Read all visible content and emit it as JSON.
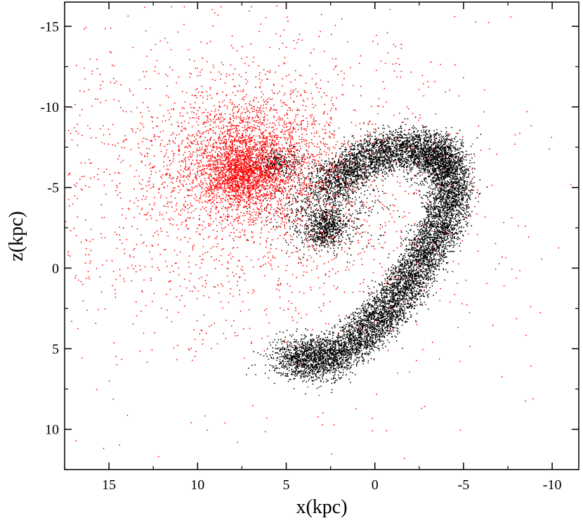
{
  "chart_data": {
    "type": "scatter",
    "title": "",
    "xlabel": "x(kpc)",
    "ylabel": "z(kpc)",
    "xlim": [
      17.5,
      -11.5
    ],
    "ylim": [
      12.5,
      -16.5
    ],
    "x_reversed": true,
    "y_reversed": true,
    "x_ticks": [
      15,
      10,
      5,
      0,
      -5,
      -10
    ],
    "x_tick_labels": [
      "15",
      "10",
      "5",
      "0",
      "-5",
      "-10"
    ],
    "y_ticks": [
      -15,
      -10,
      -5,
      0,
      5,
      10
    ],
    "y_tick_labels": [
      "-15",
      "-10",
      "-5",
      "0",
      "5",
      "10"
    ],
    "grid": false,
    "legend": "none",
    "series": [
      {
        "color": "#ff0000",
        "description_of_distribution": "red point cloud",
        "clusters": [
          {
            "x": 7.0,
            "z": -6.8,
            "sx": 2.2,
            "sz": 2.0,
            "n": 2200
          },
          {
            "x": 7.5,
            "z": -5.8,
            "sx": 1.0,
            "sz": 0.9,
            "n": 1200
          },
          {
            "x": 7.5,
            "z": -5.5,
            "sx": 5.5,
            "sz": 4.5,
            "n": 1800
          },
          {
            "x": 5.0,
            "z": -3.0,
            "sx": 8.5,
            "sz": 7.5,
            "n": 500
          }
        ]
      },
      {
        "color": "#000000",
        "description_of_distribution": "black point cloud",
        "clusters": [
          {
            "x": 2.7,
            "z": -2.5,
            "sx": 0.5,
            "sz": 0.6,
            "n": 500
          },
          {
            "x": 3.0,
            "z": -3.5,
            "sx": 1.4,
            "sz": 1.3,
            "n": 700
          },
          {
            "x": -3.4,
            "z": -6.6,
            "sx": 0.8,
            "sz": 0.8,
            "n": 500
          },
          {
            "x": 3.8,
            "z": 5.8,
            "sx": 1.2,
            "sz": 0.7,
            "n": 500
          },
          {
            "x": 5.5,
            "z": -6.5,
            "sx": 0.8,
            "sz": 0.5,
            "n": 300
          }
        ],
        "curve_band": {
          "points": [
            [
              4.8,
              5.6
            ],
            [
              2.0,
              5.4
            ],
            [
              0.0,
              3.5
            ],
            [
              -1.8,
              1.0
            ],
            [
              -3.3,
              -1.7
            ],
            [
              -4.4,
              -4.5
            ],
            [
              -4.0,
              -7.0
            ],
            [
              -2.0,
              -7.5
            ],
            [
              0.5,
              -6.8
            ],
            [
              2.7,
              -5.0
            ]
          ],
          "spread": 2.0,
          "n": 9000
        }
      }
    ]
  }
}
